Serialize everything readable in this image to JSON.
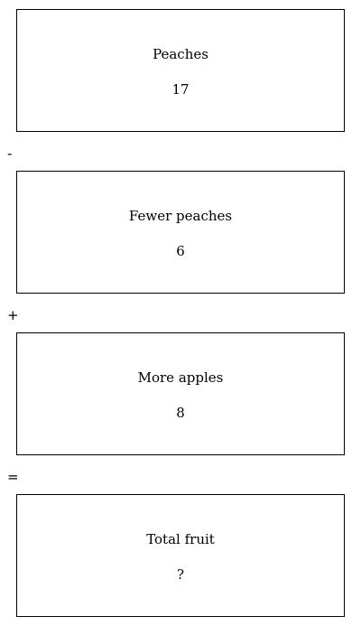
{
  "boxes": [
    {
      "label": "Peaches",
      "value": "17"
    },
    {
      "label": "Fewer peaches",
      "value": "6"
    },
    {
      "label": "More apples",
      "value": "8"
    },
    {
      "label": "Total fruit",
      "value": "?"
    }
  ],
  "operators": [
    "-",
    "+",
    "="
  ]
}
